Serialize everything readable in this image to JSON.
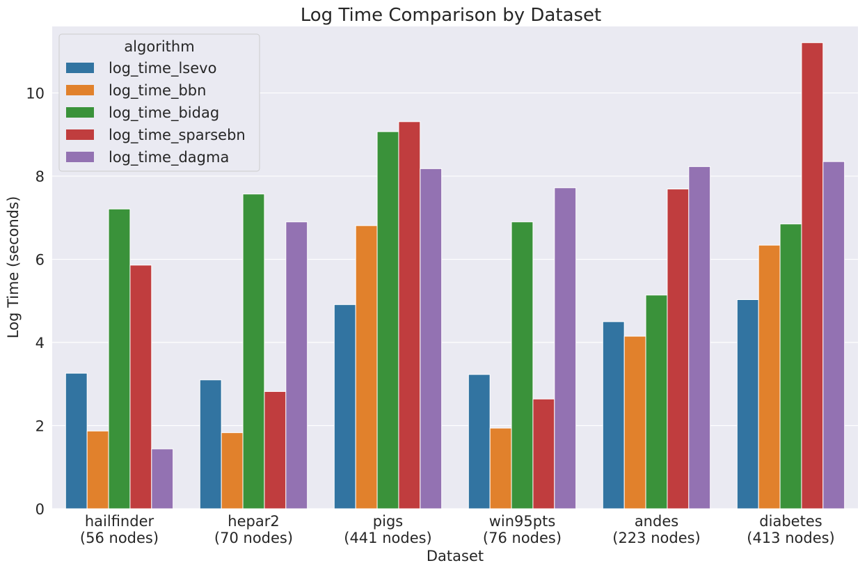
{
  "chart_data": {
    "type": "bar",
    "title": "Log Time Comparison by Dataset",
    "xlabel": "Dataset",
    "ylabel": "Log Time (seconds)",
    "ylim": [
      0,
      11.6
    ],
    "yticks": [
      0,
      2,
      4,
      6,
      8,
      10
    ],
    "grid": true,
    "legend_placement": "top-left",
    "legend_title": "algorithm",
    "categories": [
      [
        "hailfinder",
        "(56 nodes)"
      ],
      [
        "hepar2",
        "(70 nodes)"
      ],
      [
        "pigs",
        "(441 nodes)"
      ],
      [
        "win95pts",
        "(76 nodes)"
      ],
      [
        "andes",
        "(223 nodes)"
      ],
      [
        "diabetes",
        "(413 nodes)"
      ]
    ],
    "series": [
      {
        "name": "log_time_lsevo",
        "color": "#3274a1",
        "values": [
          3.26,
          3.1,
          4.91,
          3.23,
          4.5,
          5.03
        ]
      },
      {
        "name": "log_time_bbn",
        "color": "#e1812c",
        "values": [
          1.87,
          1.83,
          6.81,
          1.94,
          4.15,
          6.34
        ]
      },
      {
        "name": "log_time_bidag",
        "color": "#3a923a",
        "values": [
          7.21,
          7.57,
          9.07,
          6.9,
          5.14,
          6.85
        ]
      },
      {
        "name": "log_time_sparsebn",
        "color": "#c03d3e",
        "values": [
          5.86,
          2.82,
          9.31,
          2.64,
          7.69,
          11.21
        ]
      },
      {
        "name": "log_time_dagma",
        "color": "#9372b2",
        "values": [
          1.44,
          6.9,
          8.18,
          7.72,
          8.23,
          8.35
        ]
      }
    ],
    "colors": {
      "plot_background": "#eaeaf2",
      "grid": "#ffffff"
    }
  }
}
